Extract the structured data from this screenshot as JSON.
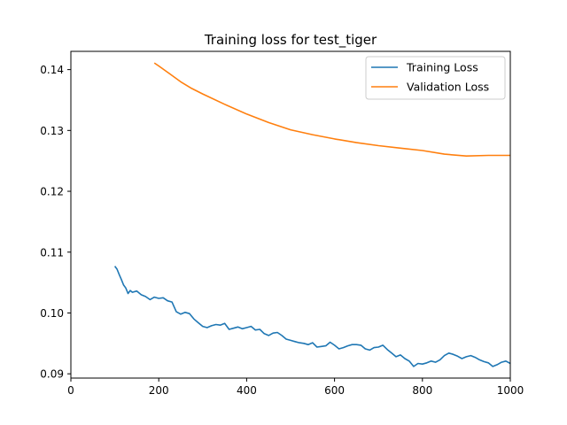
{
  "chart_data": {
    "type": "line",
    "title": "Training loss for test_tiger",
    "xlabel": "",
    "ylabel": "",
    "xlim": [
      0,
      1000
    ],
    "ylim": [
      0.0893,
      0.143
    ],
    "xticks": [
      0,
      200,
      400,
      600,
      800,
      1000
    ],
    "xtick_labels": [
      "0",
      "200",
      "400",
      "600",
      "800",
      "1000"
    ],
    "yticks": [
      0.09,
      0.1,
      0.11,
      0.12,
      0.13,
      0.14
    ],
    "ytick_labels": [
      "0.09",
      "0.10",
      "0.11",
      "0.12",
      "0.13",
      "0.14"
    ],
    "grid": false,
    "legend_position": "top-right",
    "series": [
      {
        "name": "Training Loss",
        "color": "#1f77b4",
        "x": [
          100,
          105,
          110,
          115,
          120,
          125,
          130,
          135,
          140,
          150,
          160,
          170,
          180,
          190,
          200,
          210,
          220,
          230,
          240,
          250,
          260,
          270,
          280,
          290,
          300,
          310,
          320,
          330,
          340,
          350,
          360,
          370,
          380,
          390,
          400,
          410,
          420,
          430,
          440,
          450,
          460,
          470,
          480,
          490,
          500,
          510,
          520,
          530,
          540,
          550,
          560,
          570,
          580,
          590,
          600,
          610,
          620,
          630,
          640,
          650,
          660,
          670,
          680,
          690,
          700,
          710,
          720,
          730,
          740,
          750,
          760,
          770,
          780,
          790,
          800,
          810,
          820,
          830,
          840,
          850,
          860,
          870,
          880,
          890,
          900,
          910,
          920,
          930,
          940,
          950,
          960,
          970,
          980,
          990,
          1000
        ],
        "y": [
          0.1077,
          0.1072,
          0.1063,
          0.1055,
          0.1046,
          0.1041,
          0.1032,
          0.1037,
          0.1034,
          0.1036,
          0.103,
          0.1027,
          0.1022,
          0.1026,
          0.1024,
          0.1025,
          0.102,
          0.1018,
          0.1002,
          0.0998,
          0.1001,
          0.0999,
          0.099,
          0.0984,
          0.0978,
          0.0976,
          0.0979,
          0.0981,
          0.098,
          0.0983,
          0.0973,
          0.0975,
          0.0977,
          0.0974,
          0.0976,
          0.0978,
          0.0972,
          0.0973,
          0.0966,
          0.0963,
          0.0967,
          0.0968,
          0.0963,
          0.0957,
          0.0955,
          0.0953,
          0.0951,
          0.095,
          0.0948,
          0.0951,
          0.0944,
          0.0945,
          0.0946,
          0.0952,
          0.0947,
          0.0941,
          0.0943,
          0.0946,
          0.0948,
          0.0948,
          0.0947,
          0.0941,
          0.0939,
          0.0943,
          0.0944,
          0.0947,
          0.094,
          0.0934,
          0.0928,
          0.0931,
          0.0925,
          0.0921,
          0.0912,
          0.0917,
          0.0916,
          0.0918,
          0.0921,
          0.0919,
          0.0923,
          0.093,
          0.0934,
          0.0932,
          0.0929,
          0.0925,
          0.0928,
          0.093,
          0.0927,
          0.0923,
          0.092,
          0.0918,
          0.0912,
          0.0915,
          0.0919,
          0.0921,
          0.0917
        ]
      },
      {
        "name": "Validation Loss",
        "color": "#ff7f0e",
        "x": [
          190,
          200,
          225,
          250,
          275,
          300,
          350,
          400,
          450,
          500,
          550,
          600,
          650,
          700,
          750,
          800,
          850,
          900,
          950,
          1000
        ],
        "y": [
          0.1411,
          0.1406,
          0.1393,
          0.138,
          0.1369,
          0.136,
          0.1343,
          0.1327,
          0.1313,
          0.1301,
          0.1293,
          0.1286,
          0.128,
          0.1275,
          0.1271,
          0.1267,
          0.1261,
          0.1258,
          0.1259,
          0.1259
        ]
      }
    ]
  }
}
